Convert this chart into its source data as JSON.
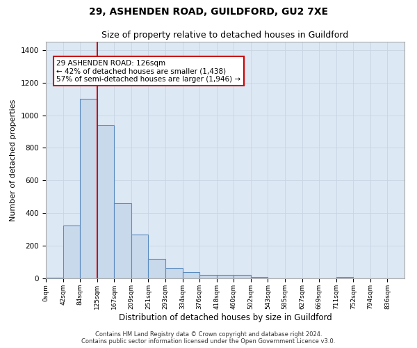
{
  "title": "29, ASHENDEN ROAD, GUILDFORD, GU2 7XE",
  "subtitle": "Size of property relative to detached houses in Guildford",
  "xlabel": "Distribution of detached houses by size in Guildford",
  "ylabel": "Number of detached properties",
  "footer_line1": "Contains HM Land Registry data © Crown copyright and database right 2024.",
  "footer_line2": "Contains public sector information licensed under the Open Government Licence v3.0.",
  "bin_labels": [
    "0sqm",
    "42sqm",
    "84sqm",
    "125sqm",
    "167sqm",
    "209sqm",
    "251sqm",
    "293sqm",
    "334sqm",
    "376sqm",
    "418sqm",
    "460sqm",
    "502sqm",
    "543sqm",
    "585sqm",
    "627sqm",
    "669sqm",
    "711sqm",
    "752sqm",
    "794sqm",
    "836sqm"
  ],
  "bar_values": [
    5,
    325,
    1100,
    940,
    460,
    270,
    120,
    65,
    38,
    20,
    20,
    20,
    10,
    0,
    0,
    0,
    0,
    8,
    0,
    0,
    0
  ],
  "bar_color": "#c9d9ec",
  "bar_edge_color": "#5a8bbf",
  "bar_edge_width": 0.8,
  "vline_x_index": 3,
  "vline_color": "#cc0000",
  "vline_linewidth": 1.5,
  "annotation_text": "29 ASHENDEN ROAD: 126sqm\n← 42% of detached houses are smaller (1,438)\n57% of semi-detached houses are larger (1,946) →",
  "annotation_box_color": "#cc0000",
  "annotation_text_color": "#000000",
  "annotation_fontsize": 7.5,
  "ylim": [
    0,
    1450
  ],
  "yticks": [
    0,
    200,
    400,
    600,
    800,
    1000,
    1200,
    1400
  ],
  "grid_color": "#c8d4e3",
  "background_color": "#dde8f5",
  "title_fontsize": 10,
  "subtitle_fontsize": 9,
  "xlabel_fontsize": 8.5,
  "ylabel_fontsize": 8
}
